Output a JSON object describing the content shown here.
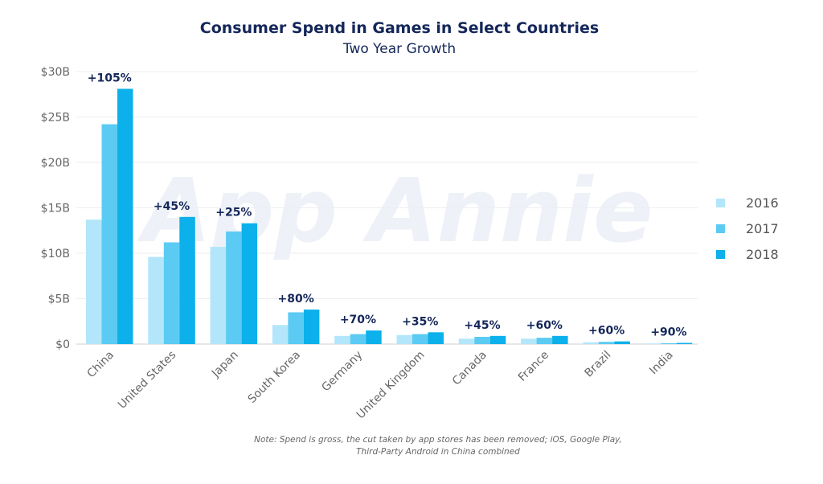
{
  "title": "Consumer Spend in Games in Select Countries",
  "subtitle": "Two Year Growth",
  "note_line1": "Note: Spend is gross, the cut taken by app stores has been removed; iOS, Google Play,",
  "note_line2": "Third-Party Android in China combined",
  "watermark": "App Annie",
  "legend": [
    {
      "name": "2016",
      "color": "#b3e6fa"
    },
    {
      "name": "2017",
      "color": "#5bcbf3"
    },
    {
      "name": "2018",
      "color": "#0cb0ea"
    }
  ],
  "chart_data": {
    "type": "bar",
    "categories": [
      "China",
      "United States",
      "Japan",
      "South Korea",
      "Germany",
      "United Kingdom",
      "Canada",
      "France",
      "Brazil",
      "India"
    ],
    "series": [
      {
        "name": "2016",
        "color": "#b3e6fa",
        "values": [
          13.7,
          9.6,
          10.7,
          2.1,
          0.9,
          1.0,
          0.6,
          0.6,
          0.2,
          0.07
        ]
      },
      {
        "name": "2017",
        "color": "#5bcbf3",
        "values": [
          24.2,
          11.2,
          12.4,
          3.5,
          1.1,
          1.1,
          0.8,
          0.7,
          0.25,
          0.1
        ]
      },
      {
        "name": "2018",
        "color": "#0cb0ea",
        "values": [
          28.1,
          14.0,
          13.3,
          3.8,
          1.5,
          1.3,
          0.9,
          0.9,
          0.3,
          0.13
        ]
      }
    ],
    "growth_labels": [
      "+105%",
      "+45%",
      "+25%",
      "+80%",
      "+70%",
      "+35%",
      "+45%",
      "+60%",
      "+60%",
      "+90%"
    ],
    "y_ticks": [
      {
        "value": 0,
        "label": "$0"
      },
      {
        "value": 5,
        "label": "$5B"
      },
      {
        "value": 10,
        "label": "$10B"
      },
      {
        "value": 15,
        "label": "$15B"
      },
      {
        "value": 20,
        "label": "$20B"
      },
      {
        "value": 25,
        "label": "$25B"
      },
      {
        "value": 30,
        "label": "$30B"
      }
    ],
    "ylim": [
      0,
      30
    ],
    "ylabel": "",
    "xlabel": "",
    "grid": true,
    "legend_position": "right"
  }
}
